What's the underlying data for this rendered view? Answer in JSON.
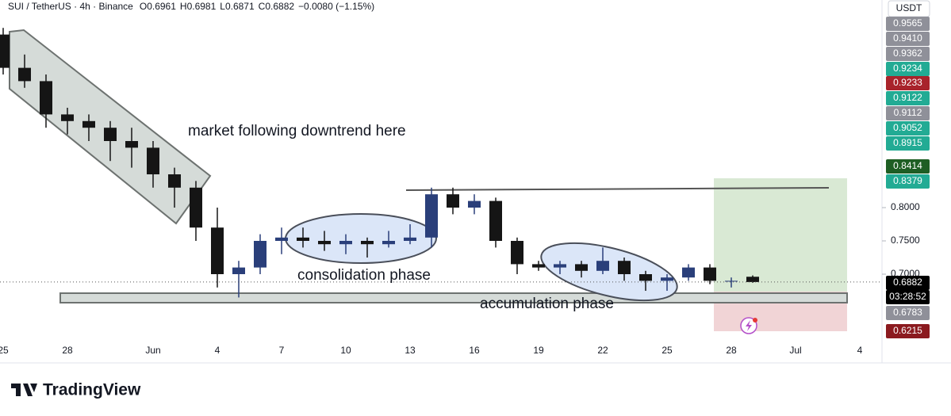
{
  "chart_data": {
    "type": "candlestick",
    "symbol": "SUI / TetherUS · 4h · Binance",
    "ohlc_labels": [
      "O0.6961",
      "H0.6981",
      "L0.6871",
      "C0.6882",
      "−0.0080 (−1.15%)"
    ],
    "currency": "USDT",
    "annotations": [
      "market following downtrend here",
      "consolidation phase",
      "accumulation phase"
    ],
    "brand": "TradingView",
    "categories": [
      "25",
      null,
      null,
      "28",
      null,
      null,
      null,
      "Jun",
      null,
      null,
      "4",
      null,
      null,
      "7",
      null,
      null,
      "10",
      null,
      null,
      "13",
      null,
      null,
      "16",
      null,
      null,
      "19",
      null,
      null,
      "22",
      null,
      null,
      "25",
      null,
      null,
      "28",
      null,
      null,
      "Jul",
      null,
      null,
      "4"
    ],
    "open": [
      1.06,
      1.01,
      0.99,
      0.94,
      0.93,
      0.92,
      0.9,
      0.89,
      0.85,
      0.83,
      0.77,
      0.7,
      0.71,
      0.75,
      0.755,
      0.75,
      0.745,
      0.75,
      0.745,
      0.75,
      0.755,
      0.82,
      0.8,
      0.81,
      0.75,
      0.715,
      0.71,
      0.715,
      0.705,
      0.72,
      0.7,
      0.69,
      0.695,
      0.71,
      0.69,
      0.6961,
      null,
      null,
      null,
      null,
      null
    ],
    "high": [
      1.07,
      1.03,
      1.0,
      0.95,
      0.94,
      0.93,
      0.92,
      0.9,
      0.86,
      0.84,
      0.8,
      0.72,
      0.76,
      0.77,
      0.77,
      0.765,
      0.76,
      0.755,
      0.765,
      0.775,
      0.83,
      0.83,
      0.82,
      0.815,
      0.755,
      0.72,
      0.72,
      0.72,
      0.74,
      0.725,
      0.705,
      0.7,
      0.715,
      0.715,
      0.695,
      0.6981,
      null,
      null,
      null,
      null,
      null
    ],
    "low": [
      1.0,
      0.98,
      0.92,
      0.91,
      0.9,
      0.87,
      0.86,
      0.83,
      0.8,
      0.75,
      0.68,
      0.665,
      0.7,
      0.73,
      0.74,
      0.735,
      0.73,
      0.725,
      0.74,
      0.745,
      0.74,
      0.79,
      0.79,
      0.74,
      0.7,
      0.705,
      0.7,
      0.695,
      0.7,
      0.69,
      0.675,
      0.675,
      0.69,
      0.685,
      0.68,
      0.6871,
      null,
      null,
      null,
      null,
      null
    ],
    "close": [
      1.01,
      0.99,
      0.94,
      0.93,
      0.92,
      0.9,
      0.89,
      0.85,
      0.83,
      0.77,
      0.7,
      0.71,
      0.75,
      0.755,
      0.75,
      0.745,
      0.75,
      0.745,
      0.75,
      0.755,
      0.82,
      0.8,
      0.81,
      0.75,
      0.715,
      0.71,
      0.715,
      0.705,
      0.72,
      0.7,
      0.69,
      0.695,
      0.71,
      0.69,
      0.69,
      0.6882,
      null,
      null,
      null,
      null,
      null
    ],
    "up_color": "#2a3f7a",
    "down_color": "#151515",
    "ylim": [
      0.6,
      1.1
    ],
    "yticks": [
      {
        "value": 0.7,
        "label": "0.7000"
      },
      {
        "value": 0.75,
        "label": "0.7500"
      },
      {
        "value": 0.8,
        "label": "0.8000"
      }
    ],
    "grid": false,
    "price_tags": [
      {
        "label": "0.9565",
        "color": "#8f9099"
      },
      {
        "label": "0.9410",
        "color": "#8f9099"
      },
      {
        "label": "0.9362",
        "color": "#8f9099"
      },
      {
        "label": "0.9234",
        "color": "#22ab94"
      },
      {
        "label": "0.9233",
        "color": "#a8232b"
      },
      {
        "label": "0.9122",
        "color": "#22ab94"
      },
      {
        "label": "0.9112",
        "color": "#8f9099"
      },
      {
        "label": "0.9052",
        "color": "#22ab94"
      },
      {
        "label": "0.8915",
        "color": "#22ab94"
      },
      {
        "label": "0.8414",
        "color": "#1e5e24"
      },
      {
        "label": "0.8379",
        "color": "#22ab94"
      },
      {
        "label": "0.6882",
        "color": "#000000"
      },
      {
        "label": "03:28:52",
        "color": "#000000"
      },
      {
        "label": "0.6783",
        "color": "#8f9099"
      },
      {
        "label": "0.6215",
        "color": "#8b1a1f"
      }
    ]
  }
}
